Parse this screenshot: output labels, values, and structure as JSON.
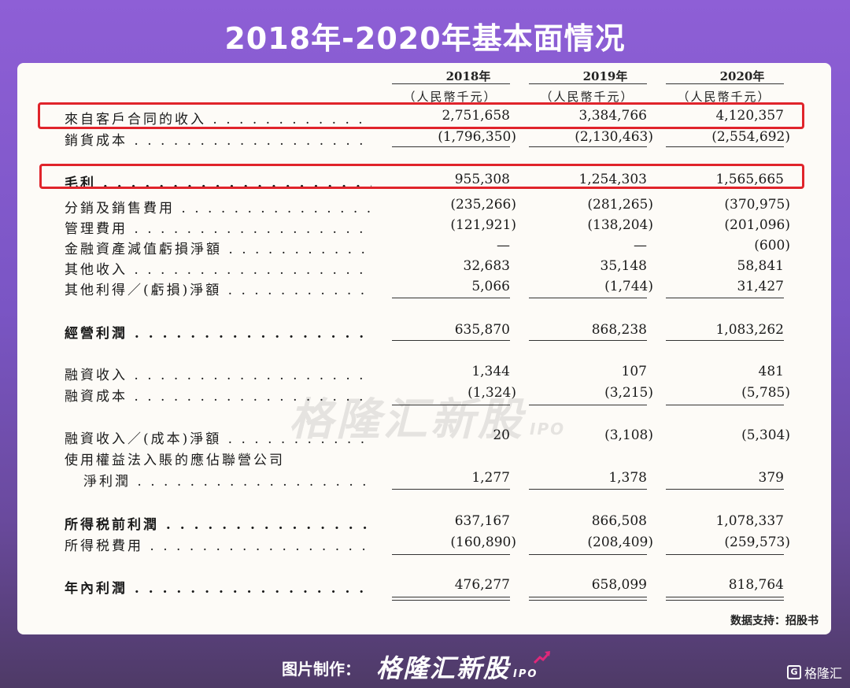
{
  "title": "2018年-2020年基本面情况",
  "columns": [
    {
      "year": "2018年",
      "unit": "（人民幣千元）"
    },
    {
      "year": "2019年",
      "unit": "（人民幣千元）"
    },
    {
      "year": "2020年",
      "unit": "（人民幣千元）"
    }
  ],
  "rows": [
    {
      "label": "來自客戶合同的收入 . . . . . . . . . . . . . . . . .",
      "values": [
        "2,751,658",
        "3,384,766",
        "4,120,357"
      ]
    },
    {
      "label": "銷貨成本 . . . . . . . . . . . . . . . . . . . . . . . . .",
      "values": [
        "(1,796,350)",
        "(2,130,463)",
        "(2,554,692)"
      ]
    },
    {
      "label": "毛利 . . . . . . . . . . . . . . . . . . . . . . . . . . . .",
      "values": [
        "955,308",
        "1,254,303",
        "1,565,665"
      ]
    },
    {
      "label": "分銷及銷售費用 . . . . . . . . . . . . . . . . . . . .",
      "values": [
        "(235,266)",
        "(281,265)",
        "(370,975)"
      ]
    },
    {
      "label": "管理費用 . . . . . . . . . . . . . . . . . . . . . . . . .",
      "values": [
        "(121,921)",
        "(138,204)",
        "(201,096)"
      ]
    },
    {
      "label": "金融資產減值虧損淨額 . . . . . . . . . . . . . .",
      "values": [
        "—",
        "—",
        "(600)"
      ]
    },
    {
      "label": "其他收入 . . . . . . . . . . . . . . . . . . . . . . . . .",
      "values": [
        "32,683",
        "35,148",
        "58,841"
      ]
    },
    {
      "label": "其他利得／(虧損)淨額 . . . . . . . . . . . . . .",
      "values": [
        "5,066",
        "(1,744)",
        "31,427"
      ]
    },
    {
      "label": "經營利潤 . . . . . . . . . . . . . . . . . . . . . . . . .",
      "values": [
        "635,870",
        "868,238",
        "1,083,262"
      ]
    },
    {
      "label": "融資收入 . . . . . . . . . . . . . . . . . . . . . . . . .",
      "values": [
        "1,344",
        "107",
        "481"
      ]
    },
    {
      "label": "融資成本 . . . . . . . . . . . . . . . . . . . . . . . . .",
      "values": [
        "(1,324)",
        "(3,215)",
        "(5,785)"
      ]
    },
    {
      "label": "融資收入／(成本)淨額 . . . . . . . . . . . . . .",
      "values": [
        "20",
        "(3,108)",
        "(5,304)"
      ]
    },
    {
      "label": "使用權益法入賬的應佔聯營公司",
      "values": [
        "",
        "",
        ""
      ]
    },
    {
      "label": "淨利潤 . . . . . . . . . . . . . . . . . . . . . . . .",
      "values": [
        "1,277",
        "1,378",
        "379"
      ]
    },
    {
      "label": "所得税前利潤 . . . . . . . . . . . . . . . . . . . . .",
      "values": [
        "637,167",
        "866,508",
        "1,078,337"
      ]
    },
    {
      "label": "所得税費用 . . . . . . . . . . . . . . . . . . . . . . .",
      "values": [
        "(160,890)",
        "(208,409)",
        "(259,573)"
      ]
    },
    {
      "label": "年內利潤 . . . . . . . . . . . . . . . . . . . . . . . . .",
      "values": [
        "476,277",
        "658,099",
        "818,764"
      ]
    }
  ],
  "watermark": {
    "text": "格隆汇新股",
    "suffix": "IPO"
  },
  "source": "数据支持：招股书",
  "footer": {
    "made_by": "图片制作：",
    "brand": "格隆汇新股",
    "brand_suffix": "IPO",
    "corner_logo": "格隆汇",
    "corner_icon": "G"
  },
  "colors": {
    "highlight": "#e0242b",
    "background_top": "#8e5fd6",
    "card": "#fdfbf7"
  }
}
